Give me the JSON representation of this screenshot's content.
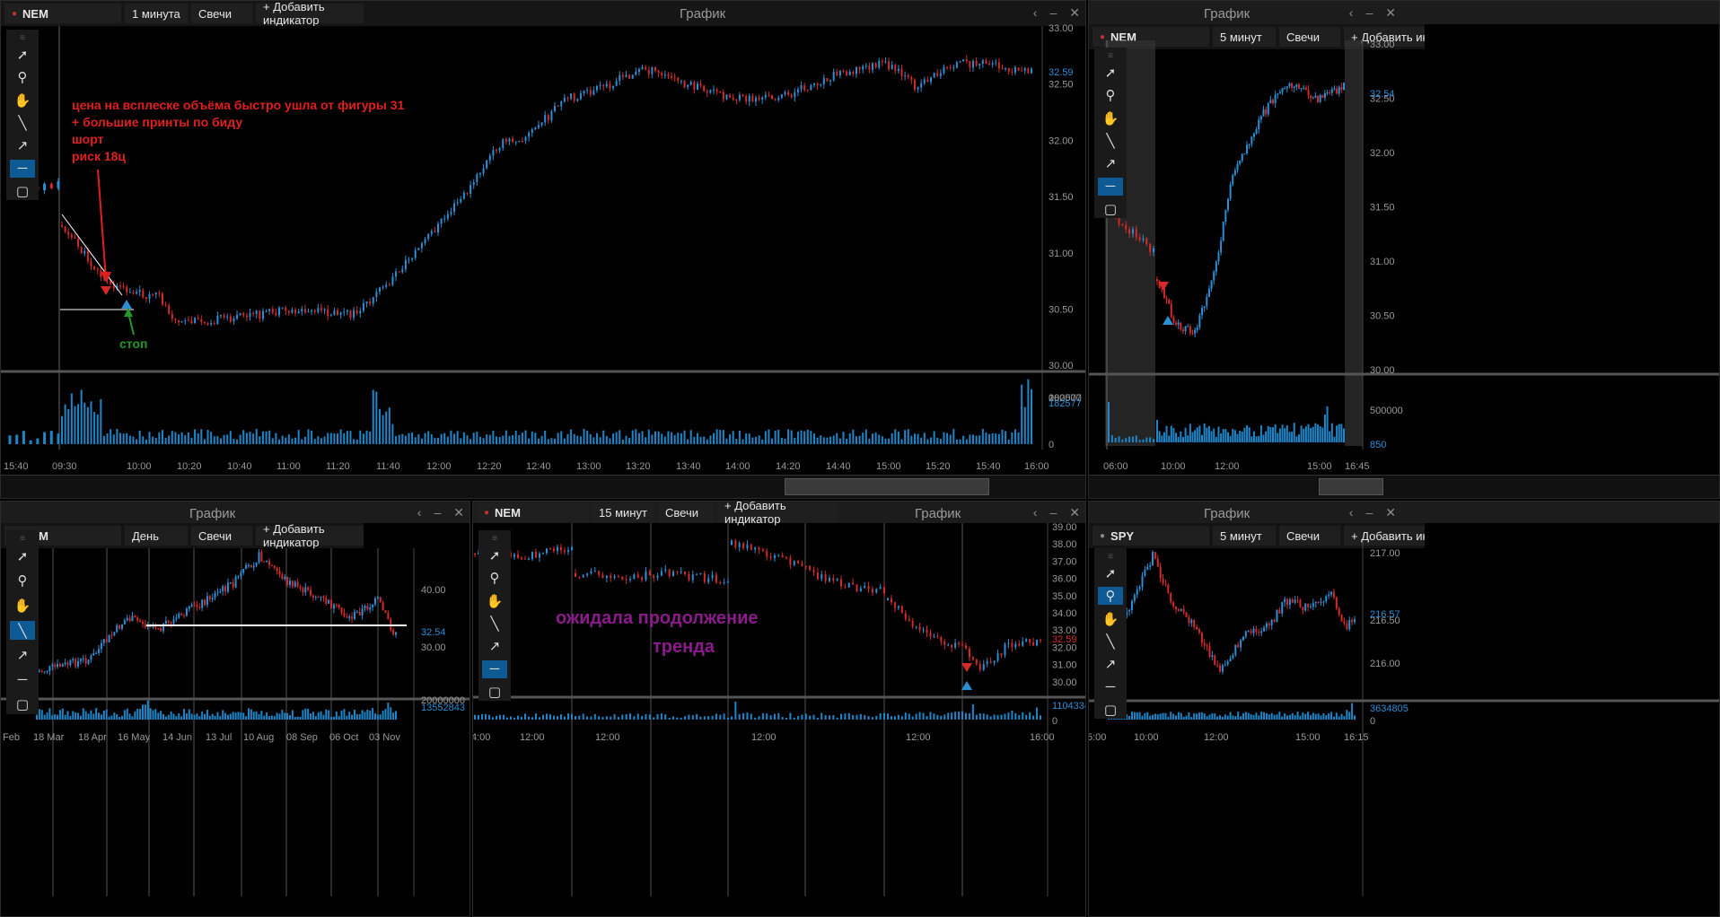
{
  "window_title": "График",
  "controls": {
    "back": "‹",
    "minimize": "‒",
    "close": "✕"
  },
  "colors": {
    "up": "#2b8fd6",
    "down": "#d42a2a",
    "volume": "#1e86c8",
    "axis": "#999999"
  },
  "tools": [
    "cursor-icon",
    "zoom-icon",
    "hand-icon",
    "line-icon",
    "arrow-icon",
    "horizontal-line-icon",
    "rectangle-icon"
  ],
  "panels": {
    "main": {
      "symbol": "NEM",
      "interval": "1 минута",
      "chart_type": "Свечи",
      "add_indicator": "+ Добавить индикатор",
      "price_ticks": [
        "33.00",
        "32.50",
        "32.00",
        "31.50",
        "31.00",
        "30.50",
        "30.00"
      ],
      "last_price": "32.59",
      "volume_ticks": [
        "200000",
        "182577",
        "0"
      ],
      "time_ticks": [
        "15:40",
        "09:30",
        "10:00",
        "10:20",
        "10:40",
        "11:00",
        "11:20",
        "11:40",
        "12:00",
        "12:20",
        "12:40",
        "13:00",
        "13:20",
        "13:40",
        "14:00",
        "14:20",
        "14:40",
        "15:00",
        "15:20",
        "15:40",
        "16:00"
      ],
      "annotation": [
        "цена на всплеске объёма быстро ушла от фигуры 31",
        "+ большие принты по биду",
        "шорт",
        "риск 18ц"
      ],
      "stop_label": "стоп"
    },
    "top_right": {
      "symbol": "NEM",
      "interval": "5 минут",
      "chart_type": "Свечи",
      "add_indicator": "+ Добавить индикатор",
      "price_ticks": [
        "33.00",
        "32.50",
        "32.00",
        "31.50",
        "31.00",
        "30.50",
        "30.00"
      ],
      "last_price": "32.54",
      "volume_ticks": [
        "500000",
        "850"
      ],
      "time_ticks": [
        "06:00",
        "10:00",
        "12:00",
        "15:00",
        "16:45"
      ]
    },
    "bottom_left": {
      "symbol": "NEM",
      "interval": "День",
      "chart_type": "Свечи",
      "add_indicator": "+ Добавить индикатор",
      "price_ticks": [
        "40.00",
        "30.00"
      ],
      "last_price": "32.54",
      "volume_ticks": [
        "20000000",
        "13552843"
      ],
      "time_ticks": [
        "Feb",
        "18 Mar",
        "18 Apr",
        "16 May",
        "14 Jun",
        "13 Jul",
        "10 Aug",
        "08 Sep",
        "06 Oct",
        "03 Nov"
      ]
    },
    "bottom_mid": {
      "symbol": "NEM",
      "interval": "15 минут",
      "chart_type": "Свечи",
      "add_indicator": "+ Добавить индикатор",
      "price_ticks": [
        "39.00",
        "38.00",
        "37.00",
        "36.00",
        "35.00",
        "34.00",
        "33.00",
        "32.00",
        "31.00",
        "30.00"
      ],
      "last_price": "32.59",
      "volume_ticks": [
        "1104334",
        "0"
      ],
      "time_ticks": [
        "4:00",
        "12:00",
        "12:00",
        "12:00",
        "12:00",
        "16:00"
      ],
      "annotation": [
        "ожидала продолжение",
        "тренда"
      ]
    },
    "bottom_right": {
      "symbol": "SPY",
      "interval": "5 минут",
      "chart_type": "Свечи",
      "add_indicator": "+ Добавить индик",
      "price_ticks": [
        "217.00",
        "216.50",
        "216.00"
      ],
      "last_price": "216.57",
      "volume_ticks": [
        "3634805",
        "0"
      ],
      "time_ticks": [
        "5:00",
        "10:00",
        "12:00",
        "15:00",
        "16:15"
      ]
    }
  }
}
